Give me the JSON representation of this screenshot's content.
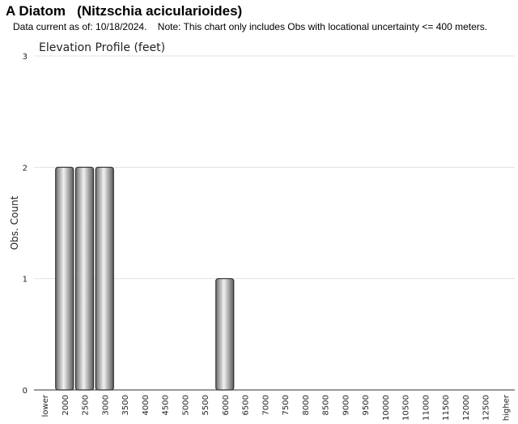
{
  "header": {
    "title": "A Diatom   (Nitzschia acicularioides)",
    "note": "Data current as of: 10/18/2024.    Note: This chart only includes Obs with locational uncertainty <= 400 meters."
  },
  "chart_data": {
    "type": "bar",
    "title": "Elevation Profile (feet)",
    "xlabel": "",
    "ylabel": "Obs. Count",
    "categories": [
      "lower",
      "2000",
      "2500",
      "3000",
      "3500",
      "4000",
      "4500",
      "5000",
      "5500",
      "6000",
      "6500",
      "7000",
      "7500",
      "8000",
      "8500",
      "9000",
      "9500",
      "10000",
      "10500",
      "11000",
      "11500",
      "12000",
      "12500",
      "higher"
    ],
    "values": [
      0,
      2,
      2,
      2,
      0,
      0,
      0,
      0,
      0,
      1,
      0,
      0,
      0,
      0,
      0,
      0,
      0,
      0,
      0,
      0,
      0,
      0,
      0,
      0
    ],
    "ylim": [
      0,
      3
    ],
    "yticks": [
      "0",
      "1",
      "2",
      "3"
    ],
    "grid": true,
    "legend": "none"
  }
}
